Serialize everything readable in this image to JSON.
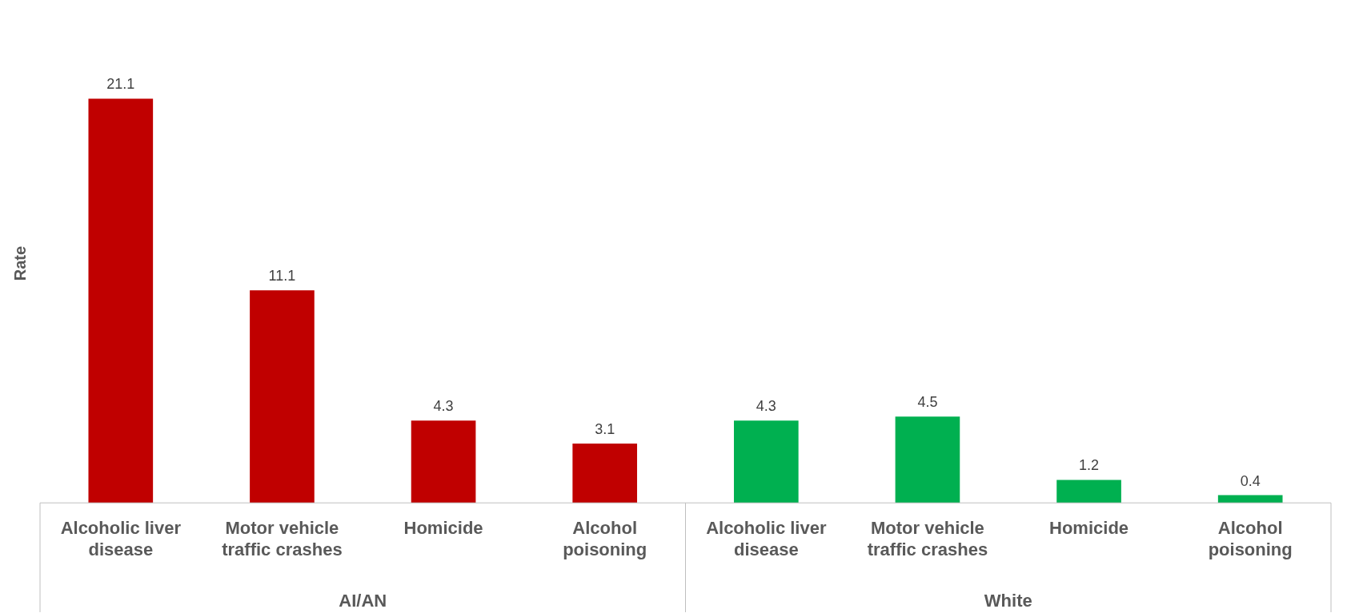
{
  "chart_data": {
    "type": "bar",
    "ylabel": "Rate",
    "categories": [
      "Alcoholic liver disease",
      "Motor vehicle traffic crashes",
      "Homicide",
      "Alcohol poisoning",
      "Alcoholic liver disease",
      "Motor vehicle traffic crashes",
      "Homicide",
      "Alcohol poisoning"
    ],
    "series": [
      {
        "color": "#c00000",
        "values": [
          21.1,
          11.1,
          4.3,
          3.1,
          null,
          null,
          null,
          null
        ]
      },
      {
        "color": "#00b050",
        "values": [
          null,
          null,
          null,
          null,
          4.3,
          4.5,
          1.2,
          0.4
        ]
      }
    ],
    "annotations": [
      "AI/AN",
      "White"
    ],
    "tick_labels": "x",
    "data_labels": true,
    "grid": false,
    "legend": false
  }
}
